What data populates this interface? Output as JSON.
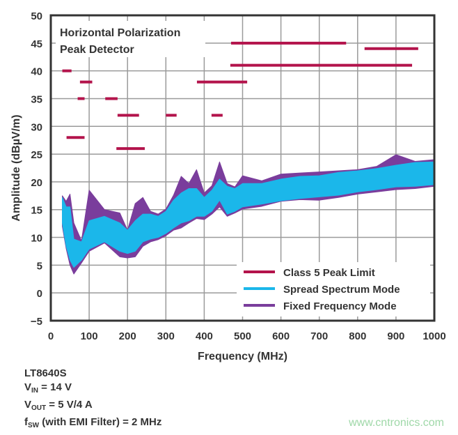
{
  "chart_data": {
    "type": "area",
    "title": "Horizontal Polarization",
    "subtitle": "Peak Detector",
    "xlabel": "Frequency (MHz)",
    "ylabel": "Amplitude (dBµV/m)",
    "xlim": [
      0,
      1000
    ],
    "ylim": [
      -5,
      50
    ],
    "xticks": [
      0,
      100,
      200,
      300,
      400,
      500,
      600,
      700,
      800,
      900,
      1000
    ],
    "yticks": [
      -5,
      0,
      5,
      10,
      15,
      20,
      25,
      30,
      35,
      40,
      45,
      50
    ],
    "ytick_labels": [
      "−5",
      "0",
      "5",
      "10",
      "15",
      "20",
      "25",
      "30",
      "35",
      "40",
      "45",
      "50"
    ],
    "grid": true,
    "legend_position": "bottom-right",
    "colors": {
      "limit": "#b3134b",
      "spread": "#1bb7ea",
      "fixed": "#7a3d9c",
      "grid": "#9a9a9a",
      "axis": "#333333"
    },
    "limit_series": {
      "name": "Class 5 Peak Limit",
      "segments": [
        {
          "x": [
            30,
            54
          ],
          "y": 40
        },
        {
          "x": [
            76,
            108
          ],
          "y": 38
        },
        {
          "x": [
            70,
            88
          ],
          "y": 35
        },
        {
          "x": [
            142,
            174
          ],
          "y": 35
        },
        {
          "x": [
            174,
            230
          ],
          "y": 32
        },
        {
          "x": [
            300,
            328
          ],
          "y": 32
        },
        {
          "x": [
            419,
            448
          ],
          "y": 32
        },
        {
          "x": [
            41,
            88
          ],
          "y": 28
        },
        {
          "x": [
            171,
            245
          ],
          "y": 26
        },
        {
          "x": [
            381,
            512
          ],
          "y": 38
        },
        {
          "x": [
            468,
            942
          ],
          "y": 41
        },
        {
          "x": [
            470,
            770
          ],
          "y": 45
        },
        {
          "x": [
            818,
            958
          ],
          "y": 44
        }
      ]
    },
    "band_series": [
      {
        "name": "Fixed Frequency Mode",
        "x": [
          30,
          40,
          50,
          60,
          80,
          100,
          140,
          180,
          200,
          220,
          240,
          260,
          280,
          300,
          320,
          340,
          360,
          380,
          400,
          420,
          440,
          460,
          480,
          500,
          550,
          600,
          650,
          700,
          750,
          800,
          850,
          900,
          950,
          1000
        ],
        "upper": [
          17.5,
          16.5,
          17.8,
          12.6,
          9.4,
          18.5,
          15.0,
          14.4,
          11.3,
          16.1,
          17.2,
          14.7,
          14.2,
          15.1,
          17.6,
          21.0,
          19.7,
          22.2,
          18.0,
          19.3,
          23.6,
          19.7,
          19.1,
          21.1,
          20.2,
          21.4,
          21.6,
          21.8,
          22.0,
          22.2,
          22.8,
          24.9,
          23.7,
          24.0
        ],
        "lower": [
          12.0,
          8.0,
          5.0,
          3.4,
          5.4,
          7.5,
          9.0,
          6.5,
          6.3,
          6.5,
          8.4,
          9.2,
          9.6,
          10.3,
          11.3,
          11.7,
          12.6,
          13.4,
          13.2,
          14.2,
          15.5,
          13.8,
          14.4,
          15.1,
          15.6,
          16.5,
          16.8,
          16.7,
          17.2,
          17.8,
          18.2,
          18.6,
          18.8,
          19.2
        ]
      },
      {
        "name": "Spread Spectrum Mode",
        "x": [
          30,
          40,
          50,
          60,
          80,
          100,
          140,
          180,
          200,
          220,
          240,
          260,
          280,
          300,
          320,
          340,
          360,
          380,
          400,
          420,
          440,
          460,
          480,
          500,
          550,
          600,
          650,
          700,
          750,
          800,
          850,
          900,
          950,
          1000
        ],
        "upper": [
          17.2,
          15.5,
          15.5,
          9.7,
          9.2,
          13.0,
          13.8,
          12.6,
          11.3,
          13.0,
          14.2,
          14.2,
          13.8,
          14.7,
          16.7,
          18.0,
          18.8,
          18.8,
          17.2,
          18.5,
          20.5,
          19.2,
          18.8,
          19.7,
          19.7,
          20.5,
          21.0,
          21.1,
          21.7,
          22.0,
          22.4,
          23.0,
          23.5,
          23.6
        ],
        "lower": [
          12.6,
          8.4,
          5.9,
          4.6,
          5.9,
          7.9,
          9.2,
          7.5,
          7.1,
          7.5,
          9.2,
          9.7,
          10.0,
          10.7,
          11.7,
          12.6,
          13.0,
          13.8,
          13.8,
          14.7,
          16.7,
          14.2,
          14.7,
          15.5,
          16.0,
          16.6,
          17.0,
          17.3,
          17.6,
          18.2,
          18.6,
          19.1,
          19.2,
          19.5
        ]
      }
    ],
    "legend": [
      "Class 5 Peak Limit",
      "Spread Spectrum Mode",
      "Fixed Frequency Mode"
    ]
  },
  "notes": {
    "part": "LT8640S",
    "vin": {
      "main": "V",
      "sub": "IN",
      "rest": " = 14 V"
    },
    "vout": {
      "main": "V",
      "sub": "OUT",
      "rest": " = 5 V/4 A"
    },
    "fsw": {
      "main": "f",
      "sub": "SW",
      "rest": " (with EMI Filter) = 2 MHz"
    }
  },
  "watermark": "www.cntronics.com"
}
